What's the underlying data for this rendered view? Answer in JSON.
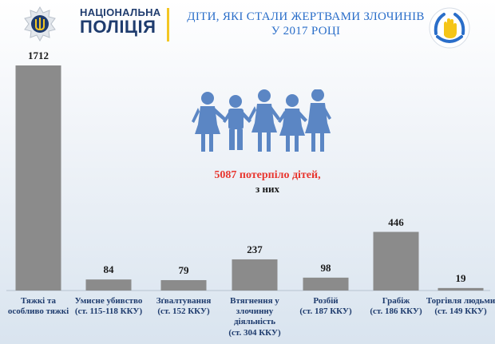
{
  "header": {
    "logo_line1": "НАЦІОНАЛЬНА",
    "logo_line2": "ПОЛІЦІЯ",
    "title_line1": "ДІТИ, ЯКІ СТАЛИ ЖЕРТВАМИ ЗЛОЧИНІВ",
    "title_line2": "У 2017 РОЦІ"
  },
  "summary": {
    "main": "5087 потерпіло дітей,",
    "sub": "з них"
  },
  "colors": {
    "bar": "#8b8b8b",
    "title": "#2a6ec9",
    "highlight": "#e8362f",
    "brand": "#1f3c6e",
    "accent": "#f3c623"
  },
  "icons": [
    "police-shield-icon",
    "hands-icon",
    "children-icon"
  ],
  "chart_data": {
    "type": "bar",
    "categories": [
      [
        "Тяжкі та",
        "особливо тяжкі"
      ],
      [
        "Умисне убивство",
        "(ст. 115-118 ККУ)"
      ],
      [
        "Зґвалтування",
        "(ст. 152 ККУ)"
      ],
      [
        "Втягнення у",
        "злочинну",
        "діяльність",
        "(ст. 304 ККУ)"
      ],
      [
        "Розбій",
        "(ст. 187 ККУ)"
      ],
      [
        "Грабіж",
        "(ст. 186 ККУ)"
      ],
      [
        "Торгівля людьми",
        "(ст. 149 ККУ)"
      ]
    ],
    "values": [
      1712,
      84,
      79,
      237,
      98,
      446,
      19
    ],
    "data_labels": [
      "1712",
      "84",
      "79",
      "237",
      "98",
      "446",
      "19"
    ],
    "ylim": [
      0,
      1712
    ],
    "grid": false
  }
}
